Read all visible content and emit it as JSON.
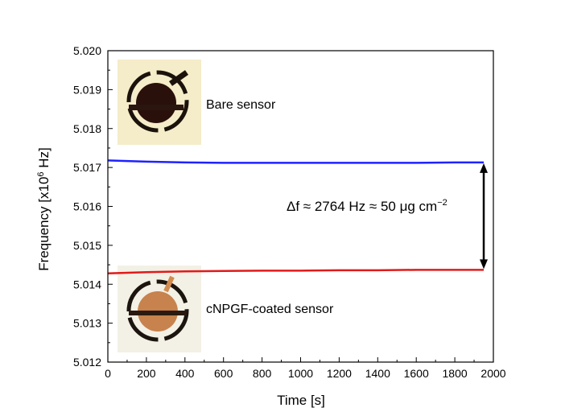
{
  "chart_data": {
    "type": "line",
    "xlabel": "Time [s]",
    "ylabel": "Frequency [x10",
    "ylabel_exponent": "6",
    "ylabel_unit": " Hz]",
    "xlim": [
      0,
      2000
    ],
    "ylim": [
      5.012,
      5.02
    ],
    "x_ticks": [
      0,
      200,
      400,
      600,
      800,
      1000,
      1200,
      1400,
      1600,
      1800,
      2000
    ],
    "y_ticks": [
      "5.012",
      "5.013",
      "5.014",
      "5.015",
      "5.016",
      "5.017",
      "5.018",
      "5.019",
      "5.020"
    ],
    "grid": false,
    "series": [
      {
        "label": "Bare sensor",
        "color": "#1f22ff",
        "x": [
          0,
          200,
          400,
          600,
          800,
          1000,
          1200,
          1400,
          1600,
          1800,
          1950
        ],
        "y": [
          5.01718,
          5.01715,
          5.01713,
          5.01712,
          5.01712,
          5.01712,
          5.01712,
          5.01712,
          5.01712,
          5.01713,
          5.01713
        ]
      },
      {
        "label": "cNPGF-coated sensor",
        "color": "#e01a1a",
        "x": [
          0,
          200,
          400,
          600,
          800,
          1000,
          1200,
          1400,
          1600,
          1800,
          1950
        ],
        "y": [
          5.01428,
          5.01431,
          5.01433,
          5.01434,
          5.01435,
          5.01435,
          5.01436,
          5.01436,
          5.01437,
          5.01437,
          5.01437
        ]
      }
    ],
    "annotation": {
      "prefix": "Δf ≈ 2764 Hz ≈ 50 μg cm",
      "superscript": "−2",
      "arrow_x": 1950,
      "arrow_from": 5.01713,
      "arrow_to": 5.01437
    }
  }
}
